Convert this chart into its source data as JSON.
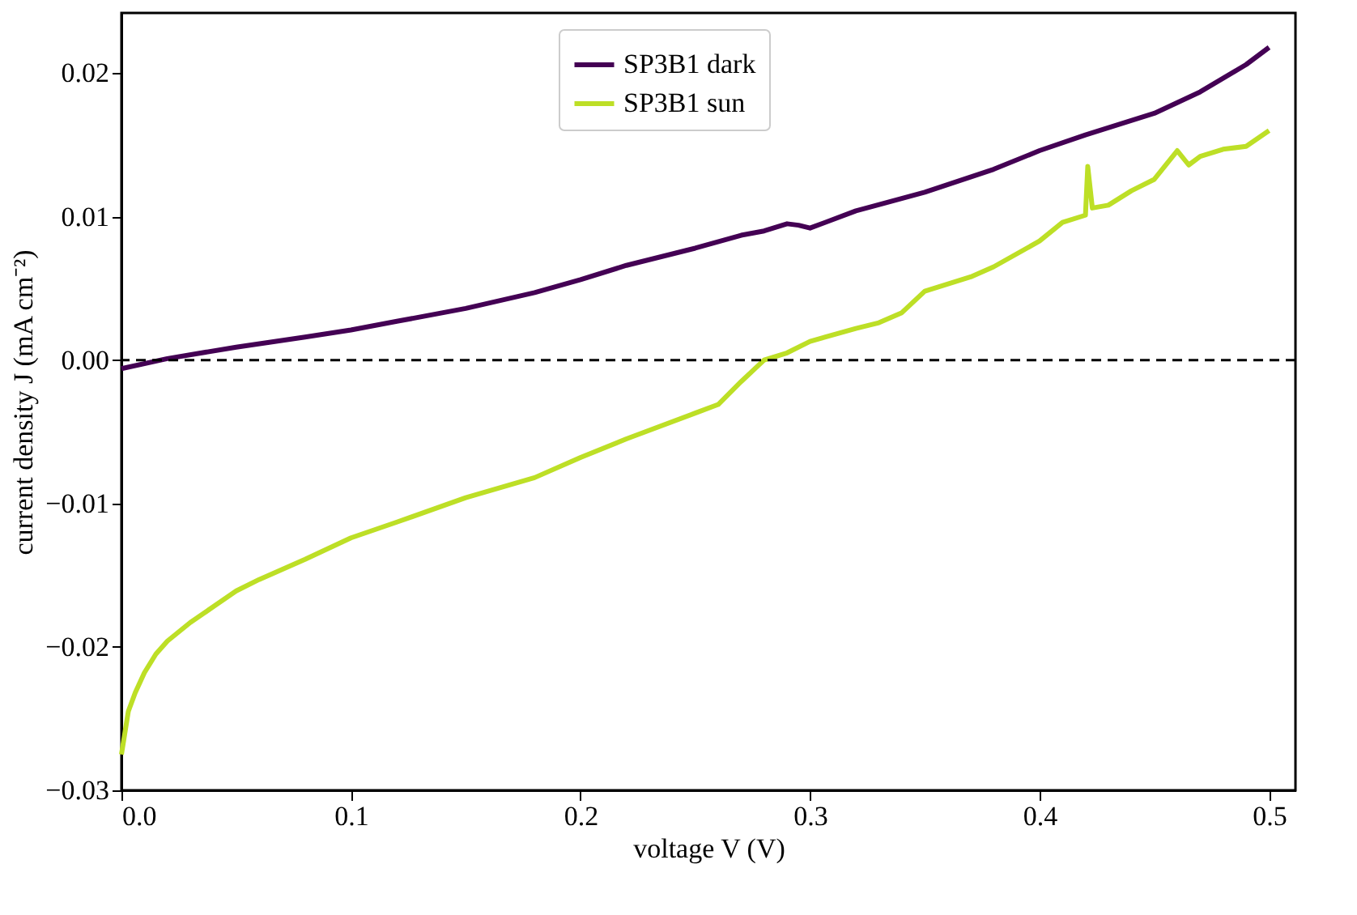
{
  "chart_data": {
    "type": "line",
    "xlabel": "voltage V (V)",
    "ylabel": "current density J (mA cm⁻²)",
    "xlim": [
      0,
      0.5115
    ],
    "ylim": [
      -0.03,
      0.0242
    ],
    "xticks": [
      {
        "value": 0,
        "label": "0.0"
      },
      0.1,
      0.2,
      0.3,
      0.4,
      0.5
    ],
    "yticks": [
      {
        "value": -0.03,
        "label": "−0.03"
      },
      {
        "value": -0.02,
        "label": "−0.02"
      },
      {
        "value": -0.01,
        "label": "−0.01"
      },
      {
        "value": 0,
        "label": "0.00"
      },
      {
        "value": 0.01,
        "label": "0.01"
      },
      {
        "value": 0.02,
        "label": "0.02"
      }
    ],
    "grid": false,
    "legend": "top",
    "marker": "none",
    "line_style": "solid",
    "ref_lines": [
      {
        "axis": "y",
        "value": 0,
        "color": "#000000",
        "line_style": "dashed"
      }
    ],
    "series": [
      {
        "name": "SP3B1 dark",
        "color": "#440154",
        "x": [
          0,
          0.02,
          0.05,
          0.08,
          0.1,
          0.12,
          0.15,
          0.18,
          0.2,
          0.22,
          0.25,
          0.27,
          0.28,
          0.29,
          0.295,
          0.3,
          0.32,
          0.35,
          0.38,
          0.4,
          0.42,
          0.45,
          0.47,
          0.49,
          0.5
        ],
        "values": [
          -0.0006,
          0.0001,
          0.0009,
          0.0016,
          0.0021,
          0.0027,
          0.0036,
          0.0047,
          0.0056,
          0.0066,
          0.0078,
          0.0087,
          0.009,
          0.0095,
          0.0094,
          0.0092,
          0.0104,
          0.0117,
          0.0133,
          0.0146,
          0.0157,
          0.0172,
          0.0187,
          0.0206,
          0.0218
        ]
      },
      {
        "name": "SP3B1 sun",
        "color": "#bddf26",
        "x": [
          0,
          0.003,
          0.006,
          0.01,
          0.015,
          0.02,
          0.03,
          0.04,
          0.05,
          0.06,
          0.07,
          0.08,
          0.1,
          0.12,
          0.15,
          0.18,
          0.2,
          0.22,
          0.25,
          0.26,
          0.27,
          0.28,
          0.29,
          0.3,
          0.32,
          0.33,
          0.34,
          0.35,
          0.37,
          0.38,
          0.4,
          0.41,
          0.42,
          0.421,
          0.423,
          0.43,
          0.44,
          0.45,
          0.46,
          0.465,
          0.47,
          0.48,
          0.49,
          0.5
        ],
        "values": [
          -0.0275,
          -0.0245,
          -0.0232,
          -0.0218,
          -0.0205,
          -0.0196,
          -0.0183,
          -0.0172,
          -0.0161,
          -0.0153,
          -0.0146,
          -0.0139,
          -0.0124,
          -0.0113,
          -0.0096,
          -0.0082,
          -0.0068,
          -0.0055,
          -0.0037,
          -0.0031,
          -0.0015,
          0.0,
          0.0005,
          0.0013,
          0.0022,
          0.0026,
          0.0033,
          0.0048,
          0.0058,
          0.0065,
          0.0083,
          0.0096,
          0.0101,
          0.0135,
          0.0106,
          0.0108,
          0.0118,
          0.0126,
          0.0146,
          0.0136,
          0.0142,
          0.0147,
          0.0149,
          0.016
        ]
      }
    ]
  }
}
